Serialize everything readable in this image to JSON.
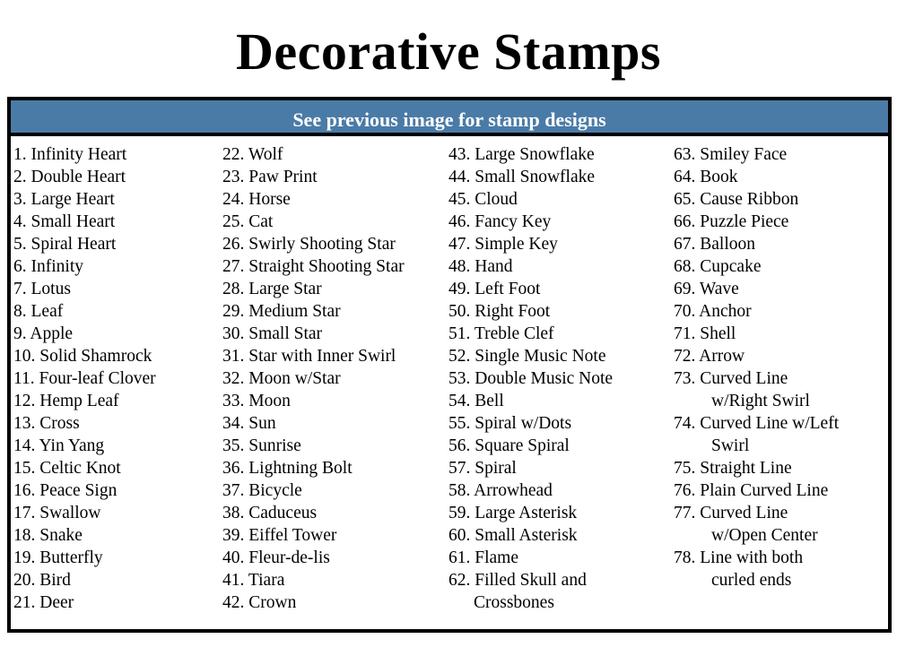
{
  "title": "Decorative Stamps",
  "header": "See previous image for stamp designs",
  "columns": [
    {
      "items": [
        {
          "label": "1. Infinity Heart"
        },
        {
          "label": "2. Double Heart"
        },
        {
          "label": "3. Large Heart"
        },
        {
          "label": "4. Small Heart"
        },
        {
          "label": "5. Spiral Heart"
        },
        {
          "label": "6. Infinity"
        },
        {
          "label": "7. Lotus"
        },
        {
          "label": "8. Leaf"
        },
        {
          "label": "9. Apple"
        },
        {
          "label": "10. Solid Shamrock"
        },
        {
          "label": "11. Four-leaf Clover"
        },
        {
          "label": "12. Hemp Leaf"
        },
        {
          "label": "13. Cross"
        },
        {
          "label": "14. Yin Yang"
        },
        {
          "label": "15. Celtic Knot"
        },
        {
          "label": "16. Peace Sign"
        },
        {
          "label": "17. Swallow"
        },
        {
          "label": "18. Snake"
        },
        {
          "label": "19. Butterfly"
        },
        {
          "label": "20. Bird"
        },
        {
          "label": "21. Deer"
        }
      ]
    },
    {
      "items": [
        {
          "label": "22. Wolf"
        },
        {
          "label": "23. Paw Print"
        },
        {
          "label": "24. Horse"
        },
        {
          "label": "25. Cat"
        },
        {
          "label": "26. Swirly Shooting Star"
        },
        {
          "label": "27. Straight Shooting Star"
        },
        {
          "label": "28. Large Star"
        },
        {
          "label": "29. Medium Star"
        },
        {
          "label": "30. Small Star"
        },
        {
          "label": "31. Star with Inner Swirl"
        },
        {
          "label": "32. Moon w/Star"
        },
        {
          "label": "33. Moon"
        },
        {
          "label": "34. Sun"
        },
        {
          "label": "35. Sunrise"
        },
        {
          "label": "36. Lightning Bolt"
        },
        {
          "label": "37. Bicycle"
        },
        {
          "label": "38. Caduceus"
        },
        {
          "label": "39. Eiffel Tower"
        },
        {
          "label": "40. Fleur-de-lis"
        },
        {
          "label": "41. Tiara"
        },
        {
          "label": "42. Crown"
        }
      ]
    },
    {
      "items": [
        {
          "label": "43. Large Snowflake"
        },
        {
          "label": "44. Small Snowflake"
        },
        {
          "label": "45. Cloud"
        },
        {
          "label": "46. Fancy Key"
        },
        {
          "label": "47. Simple Key"
        },
        {
          "label": "48. Hand"
        },
        {
          "label": "49. Left Foot"
        },
        {
          "label": "50. Right Foot"
        },
        {
          "label": "51. Treble Clef"
        },
        {
          "label": "52. Single Music Note"
        },
        {
          "label": "53. Double Music Note"
        },
        {
          "label": "54. Bell"
        },
        {
          "label": "55. Spiral w/Dots"
        },
        {
          "label": "56. Square Spiral"
        },
        {
          "label": "57. Spiral"
        },
        {
          "label": "58. Arrowhead"
        },
        {
          "label": "59. Large Asterisk"
        },
        {
          "label": "60. Small Asterisk"
        },
        {
          "label": "61. Flame"
        },
        {
          "label": "62. Filled Skull and",
          "cont": "Crossbones"
        }
      ]
    },
    {
      "items": [
        {
          "label": "63. Smiley Face"
        },
        {
          "label": "64. Book"
        },
        {
          "label": "65. Cause Ribbon"
        },
        {
          "label": "66. Puzzle Piece"
        },
        {
          "label": "67. Balloon"
        },
        {
          "label": "68. Cupcake"
        },
        {
          "label": "69. Wave"
        },
        {
          "label": "70. Anchor"
        },
        {
          "label": "71. Shell"
        },
        {
          "label": "72. Arrow"
        },
        {
          "label": "73. Curved Line",
          "cont": "w/Right Swirl"
        },
        {
          "label": "74. Curved Line w/Left",
          "cont": "Swirl"
        },
        {
          "label": "75. Straight Line"
        },
        {
          "label": "76. Plain Curved Line"
        },
        {
          "label": "77. Curved Line",
          "cont": "w/Open  Center"
        },
        {
          "label": "78. Line with both",
          "cont": "curled ends"
        }
      ]
    }
  ]
}
